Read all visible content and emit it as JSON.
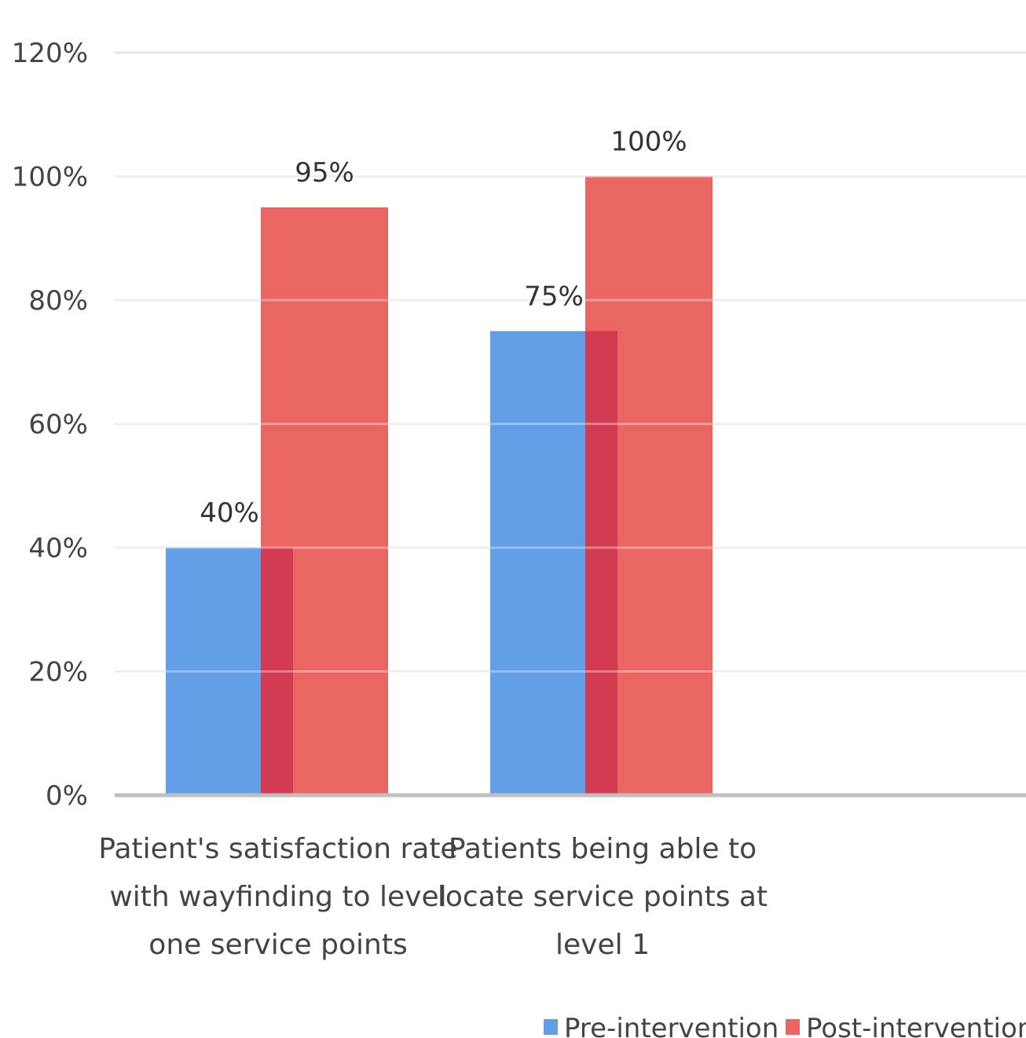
{
  "chart_data": {
    "type": "bar",
    "title": "",
    "xlabel": "",
    "ylabel": "",
    "ylim": [
      0,
      1.2
    ],
    "yticks": [
      "0%",
      "20%",
      "40%",
      "60%",
      "80%",
      "100%",
      "120%"
    ],
    "grid": true,
    "legend_position": "bottom-right",
    "categories": [
      [
        "Patient's satisfaction rate",
        "with wayfinding to level",
        "one service points"
      ],
      [
        "Patients being able to",
        "locate service points at",
        "level 1"
      ]
    ],
    "series": [
      {
        "name": "Pre-intervention",
        "color": "#629FE6",
        "values": [
          0.4,
          0.75
        ],
        "labels": [
          "40%",
          "75%"
        ]
      },
      {
        "name": "Post-intervention",
        "color": "#E96663",
        "values": [
          0.95,
          1.0
        ],
        "labels": [
          "95%",
          "100%"
        ]
      }
    ],
    "overlap_color": "#D33B52"
  }
}
